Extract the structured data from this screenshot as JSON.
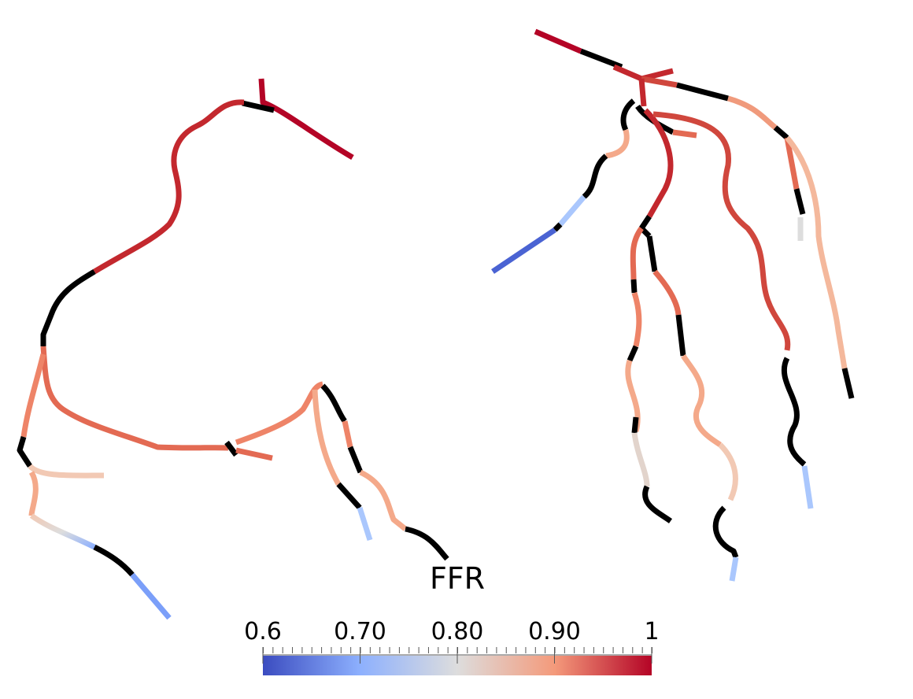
{
  "colorbar": {
    "title": "FFR",
    "range": [
      0.6,
      1
    ],
    "ticks": [
      0.6,
      {
        "value": 0.7,
        "label": "0.70"
      },
      {
        "value": 0.8,
        "label": "0.80"
      },
      {
        "value": 0.9,
        "label": "0.90"
      },
      1
    ]
  }
}
